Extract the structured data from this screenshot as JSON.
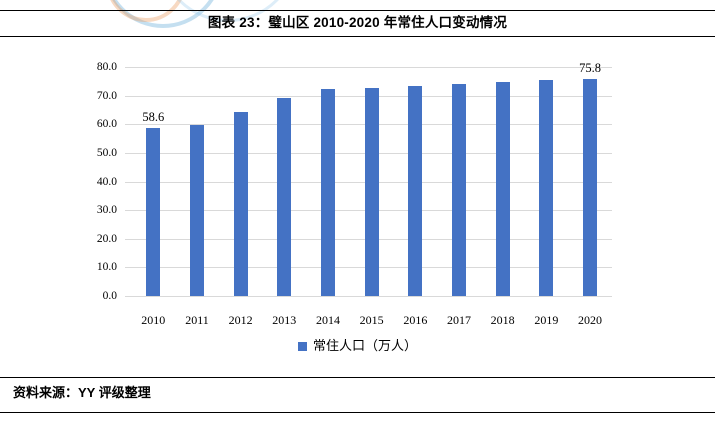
{
  "header": {
    "title": "图表 23：璧山区 2010-2020 年常住人口变动情况"
  },
  "chart_data": {
    "type": "bar",
    "title": "图表 23：璧山区 2010-2020 年常住人口变动情况",
    "categories": [
      "2010",
      "2011",
      "2012",
      "2013",
      "2014",
      "2015",
      "2016",
      "2017",
      "2018",
      "2019",
      "2020"
    ],
    "series": [
      {
        "name": "常住人口（万人）",
        "values": [
          58.6,
          59.6,
          64.2,
          69.2,
          72.2,
          72.7,
          73.2,
          74.2,
          74.9,
          75.5,
          75.8
        ]
      }
    ],
    "ylim": [
      0,
      80
    ],
    "yticks": [
      "0.0",
      "10.0",
      "20.0",
      "30.0",
      "40.0",
      "50.0",
      "60.0",
      "70.0",
      "80.0"
    ],
    "xlabel": "",
    "ylabel": "",
    "grid": true,
    "legend_position": "bottom",
    "data_labels": [
      {
        "index": 0,
        "text": "58.6"
      },
      {
        "index": 10,
        "text": "75.8"
      }
    ],
    "colors": {
      "bar": "#4472C4",
      "gridline": "#D9D9D9",
      "text": "#000000"
    }
  },
  "footer": {
    "source": "资料来源：YY 评级整理"
  },
  "watermark": {
    "colors": {
      "blue": "#7db9de",
      "orange": "#eb9b5f"
    }
  }
}
